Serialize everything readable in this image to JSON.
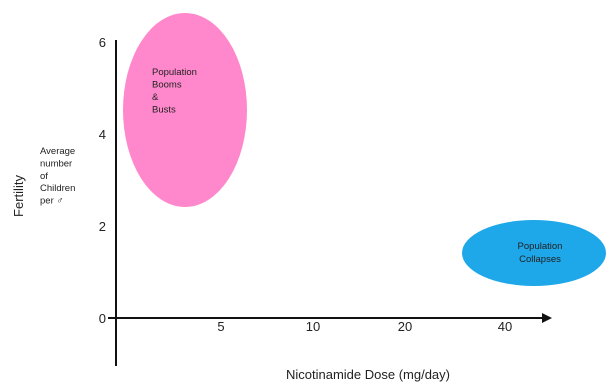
{
  "chart_data": {
    "type": "scatter",
    "xlabel": "Nicotinamide Dose (mg/day)",
    "ylabel": "Fertility",
    "ylabel_note": [
      "Average",
      "number",
      "of",
      "Children",
      "per ♂"
    ],
    "x_ticks": [
      "5",
      "10",
      "20",
      "40"
    ],
    "y_ticks": [
      "0",
      "2",
      "4",
      "6"
    ],
    "ylim": [
      0,
      6
    ],
    "regions": [
      {
        "label_lines": [
          "Population",
          "Booms",
          "&",
          "Busts"
        ],
        "color": "#ff88cc",
        "x_range": [
          "0",
          "5"
        ],
        "y_range": [
          2.5,
          6.5
        ]
      },
      {
        "label_lines": [
          "Population",
          "Collapses"
        ],
        "color": "#1ea7e9",
        "x_range": [
          "20",
          "40"
        ],
        "y_range": [
          0.8,
          1.8
        ]
      }
    ],
    "grid": false,
    "legend": "none"
  }
}
